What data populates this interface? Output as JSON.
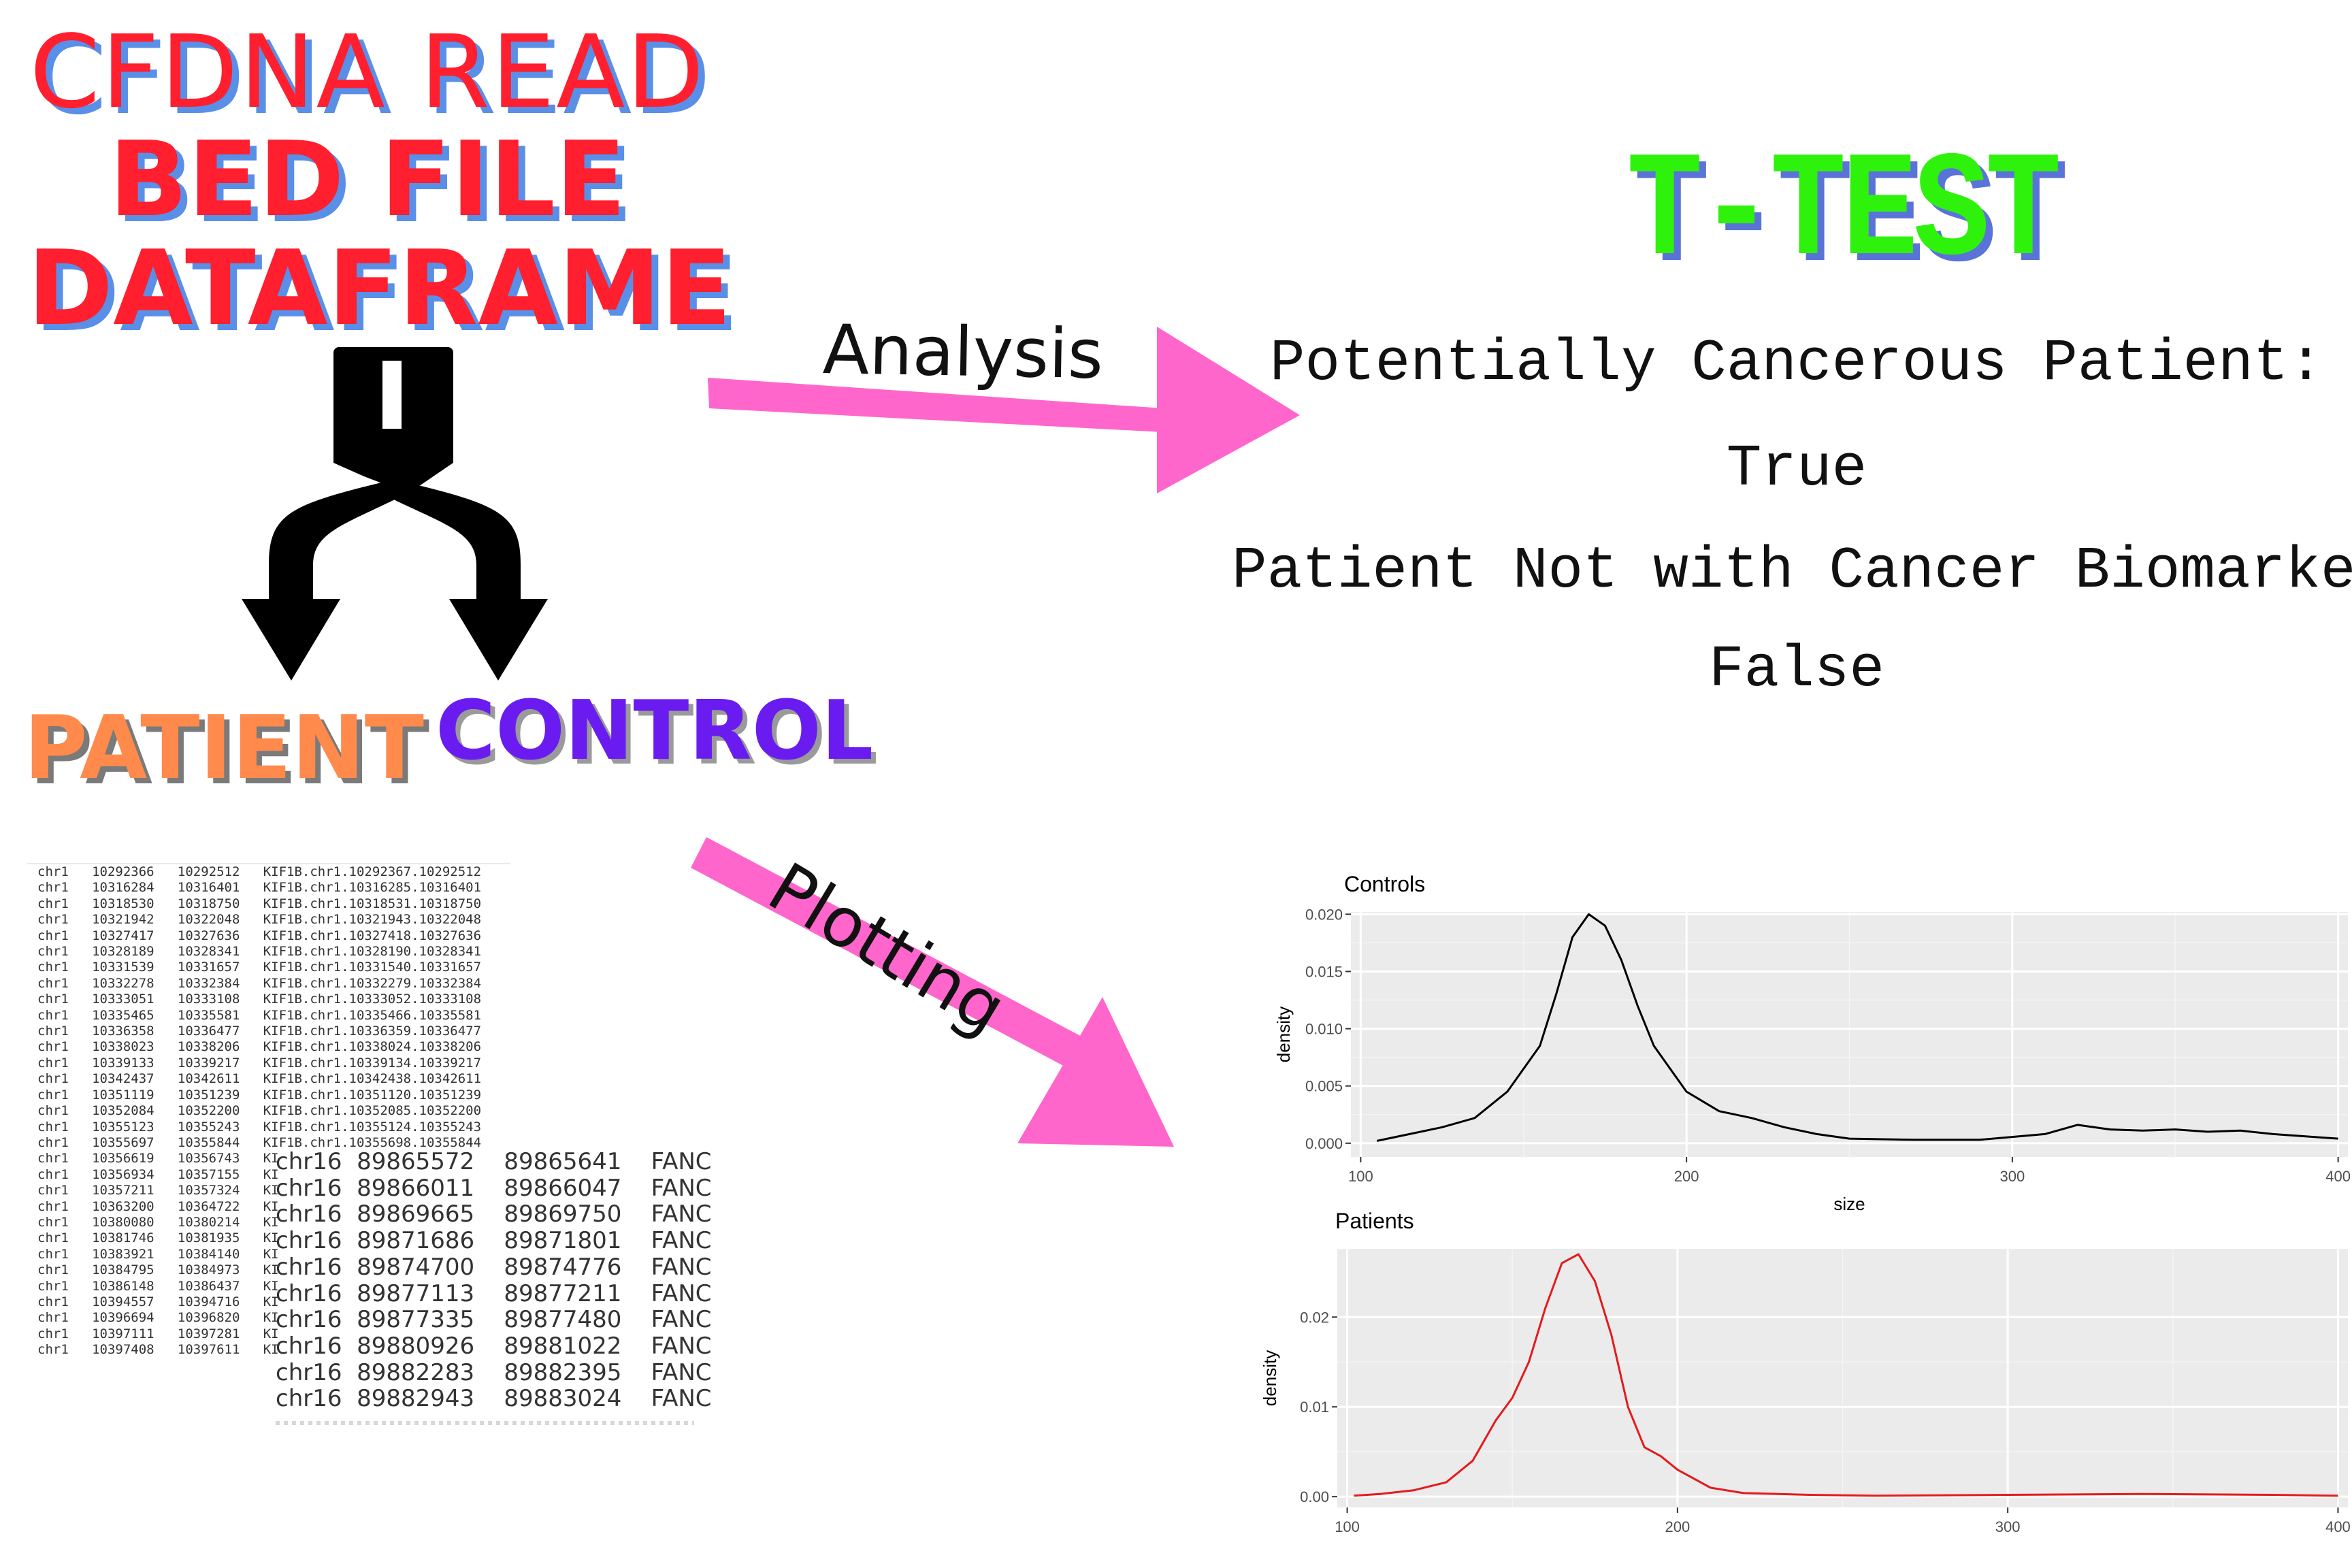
{
  "titles": {
    "line1": "CFDNA READ",
    "line2": "BED FILE",
    "line3": "DATAFRAME",
    "patient": "PATIENT",
    "control": "CONTROL",
    "ttest": "T-TEST"
  },
  "arrows": {
    "analysis": "Analysis",
    "plotting": "Plotting"
  },
  "result": {
    "line1": "Potentially Cancerous Patient:",
    "line2": "True",
    "line3": "Patient Not with Cancer Biomarker:",
    "line4": "False"
  },
  "bed_small_rows": [
    "chr1   10292366   10292512   KIF1B.chr1.10292367.10292512",
    "chr1   10316284   10316401   KIF1B.chr1.10316285.10316401",
    "chr1   10318530   10318750   KIF1B.chr1.10318531.10318750",
    "chr1   10321942   10322048   KIF1B.chr1.10321943.10322048",
    "chr1   10327417   10327636   KIF1B.chr1.10327418.10327636",
    "chr1   10328189   10328341   KIF1B.chr1.10328190.10328341",
    "chr1   10331539   10331657   KIF1B.chr1.10331540.10331657",
    "chr1   10332278   10332384   KIF1B.chr1.10332279.10332384",
    "chr1   10333051   10333108   KIF1B.chr1.10333052.10333108",
    "chr1   10335465   10335581   KIF1B.chr1.10335466.10335581",
    "chr1   10336358   10336477   KIF1B.chr1.10336359.10336477",
    "chr1   10338023   10338206   KIF1B.chr1.10338024.10338206",
    "chr1   10339133   10339217   KIF1B.chr1.10339134.10339217",
    "chr1   10342437   10342611   KIF1B.chr1.10342438.10342611",
    "chr1   10351119   10351239   KIF1B.chr1.10351120.10351239",
    "chr1   10352084   10352200   KIF1B.chr1.10352085.10352200",
    "chr1   10355123   10355243   KIF1B.chr1.10355124.10355243",
    "chr1   10355697   10355844   KIF1B.chr1.10355698.10355844",
    "chr1   10356619   10356743   KI",
    "chr1   10356934   10357155   KI",
    "chr1   10357211   10357324   KI",
    "chr1   10363200   10364722   KI",
    "chr1   10380080   10380214   KI",
    "chr1   10381746   10381935   KI",
    "chr1   10383921   10384140   KI",
    "chr1   10384795   10384973   KI",
    "chr1   10386148   10386437   KI",
    "chr1   10394557   10394716   KI",
    "chr1   10396694   10396820   KI",
    "chr1   10397111   10397281   KI",
    "chr1   10397408   10397611   KI"
  ],
  "bed_large_rows": [
    "chr16  89865572    89865641    FANC",
    "chr16  89866011    89866047    FANC",
    "chr16  89869665    89869750    FANC",
    "chr16  89871686    89871801    FANC",
    "chr16  89874700    89874776    FANC",
    "chr16  89877113    89877211    FANC",
    "chr16  89877335    89877480    FANC",
    "chr16  89880926    89881022    FANC",
    "chr16  89882283    89882395    FANC",
    "chr16  89882943    89883024    FANC"
  ],
  "colors": {
    "title_red": "#ff1f2e",
    "shadow_blue": "#5a8fe8",
    "patient_orange": "#ff8a4c",
    "control_purple": "#6a1cf0",
    "ttest_green": "#2ef20c",
    "arrow_pink": "#ff66cc",
    "controls_line": "#000000",
    "patients_line": "#e41a1c",
    "panel_bg": "#ebebeb"
  },
  "chart_data": [
    {
      "type": "line",
      "title": "Controls",
      "xlabel": "size",
      "ylabel": "density",
      "xlim": [
        97,
        403
      ],
      "ylim": [
        -0.0012,
        0.0202
      ],
      "xticks": [
        100,
        200,
        300,
        400
      ],
      "yticks": [
        0.0,
        0.005,
        0.01,
        0.015,
        0.02
      ],
      "ytick_labels": [
        "0.000",
        "0.005",
        "0.010",
        "0.015",
        "0.020"
      ],
      "grid": true,
      "series": [
        {
          "x": [
            105,
            115,
            125,
            135,
            145,
            155,
            160,
            165,
            170,
            175,
            180,
            185,
            190,
            200,
            210,
            220,
            230,
            240,
            250,
            270,
            290,
            310,
            320,
            330,
            340,
            350,
            360,
            370,
            380,
            400
          ],
          "y": [
            0.0002,
            0.0008,
            0.0014,
            0.0022,
            0.0045,
            0.0085,
            0.013,
            0.018,
            0.02,
            0.019,
            0.016,
            0.012,
            0.0085,
            0.0045,
            0.0028,
            0.0022,
            0.0014,
            0.0008,
            0.0004,
            0.0003,
            0.0003,
            0.0008,
            0.0016,
            0.0012,
            0.0011,
            0.0012,
            0.001,
            0.0011,
            0.0008,
            0.0004
          ]
        }
      ]
    },
    {
      "type": "line",
      "title": "Patients",
      "xlabel": "",
      "ylabel": "density",
      "xlim": [
        97,
        403
      ],
      "ylim": [
        -0.0012,
        0.0276
      ],
      "xticks": [
        100,
        200,
        300,
        400
      ],
      "yticks": [
        0.0,
        0.01,
        0.02
      ],
      "ytick_labels": [
        "0.00",
        "0.01",
        "0.02"
      ],
      "grid": true,
      "series": [
        {
          "x": [
            102,
            110,
            120,
            130,
            138,
            145,
            150,
            155,
            160,
            165,
            170,
            175,
            180,
            185,
            190,
            195,
            200,
            210,
            220,
            240,
            260,
            300,
            340,
            380,
            400
          ],
          "y": [
            0.0001,
            0.0003,
            0.0007,
            0.0016,
            0.004,
            0.0085,
            0.011,
            0.015,
            0.021,
            0.026,
            0.027,
            0.024,
            0.018,
            0.01,
            0.0055,
            0.0045,
            0.003,
            0.001,
            0.0004,
            0.0002,
            0.0001,
            0.0002,
            0.0003,
            0.0002,
            0.0001
          ]
        }
      ]
    }
  ]
}
